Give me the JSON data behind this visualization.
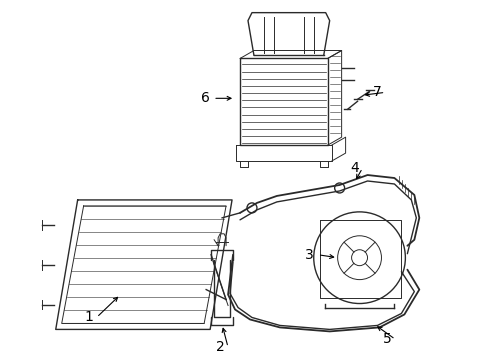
{
  "background_color": "#ffffff",
  "line_color": "#2a2a2a",
  "label_color": "#000000",
  "figsize": [
    4.9,
    3.6
  ],
  "dpi": 100,
  "label_fontsize": 10
}
